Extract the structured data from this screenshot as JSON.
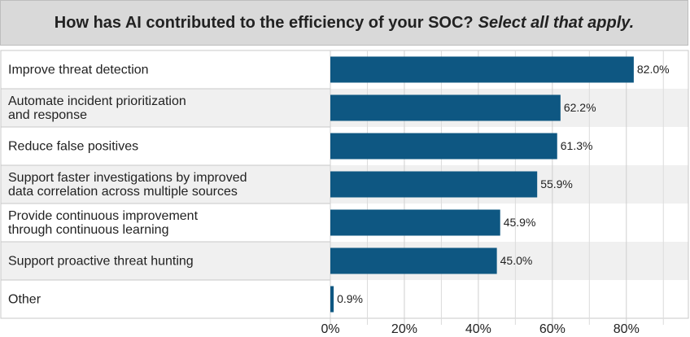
{
  "chart_data": {
    "type": "hbar",
    "title": "How has AI contributed to the efficiency of your SOC?",
    "subtitle": "Select all that apply.",
    "categories": [
      "Improve threat detection",
      "Automate incident prioritization\nand response",
      "Reduce false positives",
      "Support faster investigations by improved\ndata correlation across multiple sources",
      "Provide continuous improvement\nthrough continuous learning",
      "Support proactive threat hunting",
      "Other"
    ],
    "values": [
      82.0,
      62.2,
      61.3,
      55.9,
      45.9,
      45.0,
      0.9
    ],
    "value_labels": [
      "82.0%",
      "62.2%",
      "61.3%",
      "55.9%",
      "45.9%",
      "45.0%",
      "0.9%"
    ],
    "color": "#0e5782",
    "xlim": [
      0,
      95
    ],
    "xticks": [
      {
        "value": 0,
        "label": "0%"
      },
      {
        "value": 20,
        "label": "20%"
      },
      {
        "value": 40,
        "label": "40%"
      },
      {
        "value": 60,
        "label": "60%"
      },
      {
        "value": 80,
        "label": "80%"
      }
    ],
    "minor_xticks": [
      10,
      30,
      50,
      70,
      90
    ],
    "grid": true
  }
}
